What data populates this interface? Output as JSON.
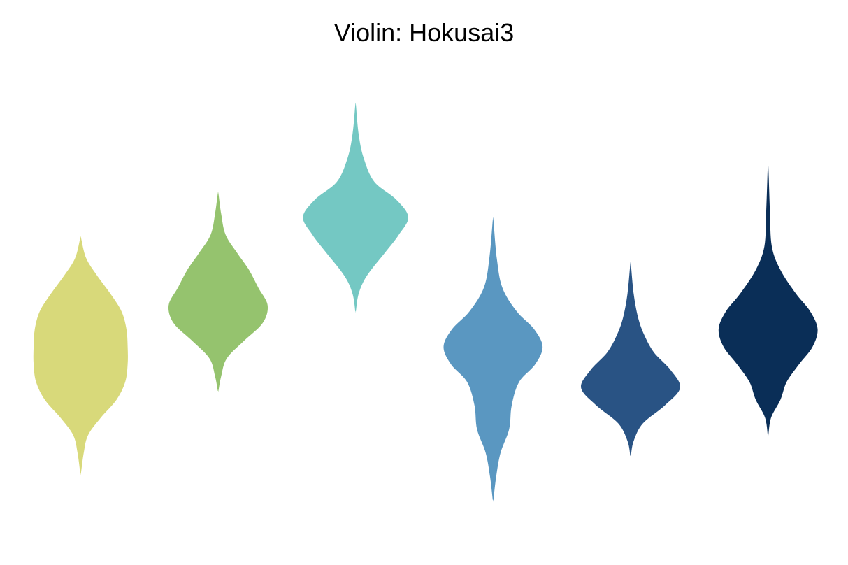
{
  "chart_data": {
    "type": "violin",
    "title": "Violin: Hokusai3",
    "xlabel": "",
    "ylabel": "",
    "axes_visible": false,
    "grid": false,
    "legend": "none",
    "series": [
      {
        "color": "#d8d97a",
        "min": -2.85,
        "max": 1.15,
        "density": [
          [
            -2.85,
            0.005
          ],
          [
            -2.5,
            0.05
          ],
          [
            -2.2,
            0.12
          ],
          [
            -1.9,
            0.33
          ],
          [
            -1.6,
            0.58
          ],
          [
            -1.3,
            0.72
          ],
          [
            -1.0,
            0.76
          ],
          [
            -0.7,
            0.76
          ],
          [
            -0.4,
            0.74
          ],
          [
            -0.1,
            0.66
          ],
          [
            0.2,
            0.48
          ],
          [
            0.5,
            0.27
          ],
          [
            0.8,
            0.09
          ],
          [
            1.15,
            0.005
          ]
        ]
      },
      {
        "color": "#95c36e",
        "min": -1.45,
        "max": 1.9,
        "density": [
          [
            -1.45,
            0.005
          ],
          [
            -1.2,
            0.05
          ],
          [
            -0.9,
            0.14
          ],
          [
            -0.6,
            0.42
          ],
          [
            -0.3,
            0.72
          ],
          [
            0.0,
            0.8
          ],
          [
            0.3,
            0.65
          ],
          [
            0.6,
            0.5
          ],
          [
            0.9,
            0.3
          ],
          [
            1.2,
            0.12
          ],
          [
            1.55,
            0.05
          ],
          [
            1.9,
            0.005
          ]
        ]
      },
      {
        "color": "#74c8c3",
        "min": -0.1,
        "max": 3.4,
        "density": [
          [
            -0.1,
            0.005
          ],
          [
            0.2,
            0.05
          ],
          [
            0.5,
            0.18
          ],
          [
            0.9,
            0.48
          ],
          [
            1.2,
            0.7
          ],
          [
            1.5,
            0.85
          ],
          [
            1.8,
            0.65
          ],
          [
            2.1,
            0.3
          ],
          [
            2.5,
            0.13
          ],
          [
            2.9,
            0.05
          ],
          [
            3.4,
            0.005
          ]
        ]
      },
      {
        "color": "#5a97c1",
        "min": -3.3,
        "max": 1.45,
        "density": [
          [
            -3.3,
            0.005
          ],
          [
            -2.9,
            0.05
          ],
          [
            -2.5,
            0.12
          ],
          [
            -2.1,
            0.26
          ],
          [
            -1.7,
            0.3
          ],
          [
            -1.3,
            0.42
          ],
          [
            -1.0,
            0.68
          ],
          [
            -0.7,
            0.8
          ],
          [
            -0.4,
            0.66
          ],
          [
            -0.1,
            0.38
          ],
          [
            0.3,
            0.15
          ],
          [
            0.8,
            0.06
          ],
          [
            1.45,
            0.005
          ]
        ]
      },
      {
        "color": "#295384",
        "min": -2.55,
        "max": 0.7,
        "density": [
          [
            -2.55,
            0.005
          ],
          [
            -2.3,
            0.05
          ],
          [
            -2.0,
            0.2
          ],
          [
            -1.7,
            0.55
          ],
          [
            -1.4,
            0.8
          ],
          [
            -1.1,
            0.65
          ],
          [
            -0.8,
            0.38
          ],
          [
            -0.5,
            0.22
          ],
          [
            -0.2,
            0.12
          ],
          [
            0.2,
            0.05
          ],
          [
            0.7,
            0.005
          ]
        ]
      },
      {
        "color": "#0a2e57",
        "min": -2.2,
        "max": 2.35,
        "density": [
          [
            -2.2,
            0.005
          ],
          [
            -1.9,
            0.05
          ],
          [
            -1.6,
            0.2
          ],
          [
            -1.3,
            0.3
          ],
          [
            -1.0,
            0.5
          ],
          [
            -0.7,
            0.72
          ],
          [
            -0.4,
            0.8
          ],
          [
            -0.1,
            0.68
          ],
          [
            0.2,
            0.45
          ],
          [
            0.6,
            0.2
          ],
          [
            1.0,
            0.06
          ],
          [
            1.6,
            0.03
          ],
          [
            2.35,
            0.005
          ]
        ]
      }
    ]
  }
}
